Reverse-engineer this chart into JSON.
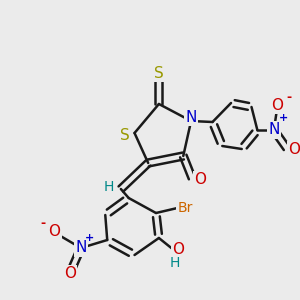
{
  "bg_color": "#ebebeb",
  "bond_color": "#1a1a1a",
  "bond_width": 1.8,
  "atom_colors": {
    "S": "#999900",
    "N": "#0000cc",
    "O": "#cc0000",
    "Br": "#cc6600",
    "H": "#008888",
    "C": "#1a1a1a"
  },
  "font_size": 9,
  "fig_size": [
    3.0,
    3.0
  ],
  "dpi": 100
}
